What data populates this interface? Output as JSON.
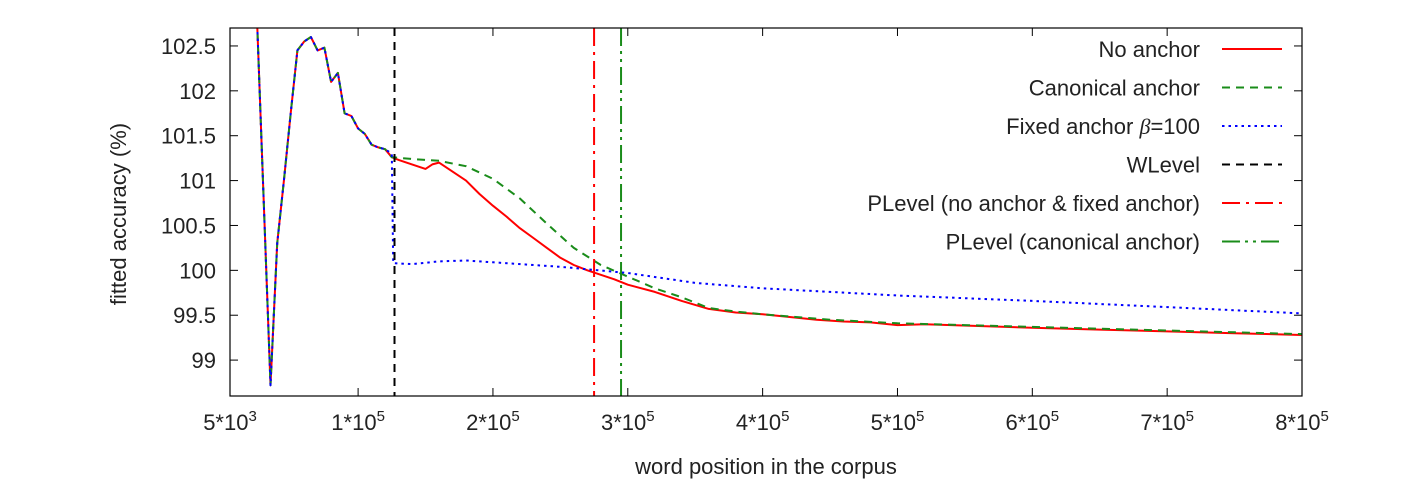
{
  "chart_data": {
    "type": "line",
    "title": "",
    "xlabel": "word position in the corpus",
    "ylabel": "fitted accuracy (%)",
    "xlim": [
      5000,
      800000
    ],
    "ylim": [
      98.6,
      102.7
    ],
    "grid": false,
    "legend_position": "top-right",
    "x_ticks": [
      {
        "value": 5000,
        "base": "5*10",
        "exp": "3"
      },
      {
        "value": 100000,
        "base": "1*10",
        "exp": "5"
      },
      {
        "value": 200000,
        "base": "2*10",
        "exp": "5"
      },
      {
        "value": 300000,
        "base": "3*10",
        "exp": "5"
      },
      {
        "value": 400000,
        "base": "4*10",
        "exp": "5"
      },
      {
        "value": 500000,
        "base": "5*10",
        "exp": "5"
      },
      {
        "value": 600000,
        "base": "6*10",
        "exp": "5"
      },
      {
        "value": 700000,
        "base": "7*10",
        "exp": "5"
      },
      {
        "value": 800000,
        "base": "8*10",
        "exp": "5"
      }
    ],
    "y_ticks": [
      {
        "value": 99,
        "label": "99"
      },
      {
        "value": 99.5,
        "label": "99.5"
      },
      {
        "value": 100,
        "label": "100"
      },
      {
        "value": 100.5,
        "label": "100.5"
      },
      {
        "value": 101,
        "label": "101"
      },
      {
        "value": 101.5,
        "label": "101.5"
      },
      {
        "value": 102,
        "label": "102"
      },
      {
        "value": 102.5,
        "label": "102.5"
      }
    ],
    "series": [
      {
        "name": "No anchor",
        "color": "#ff0000",
        "dash": "solid",
        "points": [
          [
            25000,
            102.8
          ],
          [
            35000,
            98.72
          ],
          [
            40000,
            100.3
          ],
          [
            45000,
            101.0
          ],
          [
            50000,
            101.75
          ],
          [
            55000,
            102.45
          ],
          [
            60000,
            102.55
          ],
          [
            65000,
            102.6
          ],
          [
            70000,
            102.45
          ],
          [
            75000,
            102.48
          ],
          [
            80000,
            102.1
          ],
          [
            85000,
            102.2
          ],
          [
            90000,
            101.75
          ],
          [
            95000,
            101.72
          ],
          [
            100000,
            101.58
          ],
          [
            105000,
            101.52
          ],
          [
            110000,
            101.4
          ],
          [
            115000,
            101.37
          ],
          [
            120000,
            101.35
          ],
          [
            125000,
            101.26
          ],
          [
            130000,
            101.23
          ],
          [
            140000,
            101.18
          ],
          [
            150000,
            101.13
          ],
          [
            155000,
            101.18
          ],
          [
            160000,
            101.2
          ],
          [
            170000,
            101.1
          ],
          [
            180000,
            101.0
          ],
          [
            190000,
            100.85
          ],
          [
            200000,
            100.72
          ],
          [
            210000,
            100.6
          ],
          [
            220000,
            100.47
          ],
          [
            230000,
            100.36
          ],
          [
            240000,
            100.25
          ],
          [
            250000,
            100.14
          ],
          [
            260000,
            100.06
          ],
          [
            270000,
            100.0
          ],
          [
            280000,
            99.95
          ],
          [
            290000,
            99.9
          ],
          [
            300000,
            99.84
          ],
          [
            320000,
            99.76
          ],
          [
            340000,
            99.66
          ],
          [
            360000,
            99.57
          ],
          [
            380000,
            99.53
          ],
          [
            400000,
            99.51
          ],
          [
            420000,
            99.48
          ],
          [
            440000,
            99.45
          ],
          [
            460000,
            99.43
          ],
          [
            480000,
            99.42
          ],
          [
            500000,
            99.39
          ],
          [
            520000,
            99.4
          ],
          [
            560000,
            99.38
          ],
          [
            600000,
            99.36
          ],
          [
            650000,
            99.34
          ],
          [
            700000,
            99.32
          ],
          [
            750000,
            99.3
          ],
          [
            800000,
            99.28
          ]
        ]
      },
      {
        "name": "Canonical anchor",
        "color": "#1a8c1a",
        "dash": "dashed",
        "points": [
          [
            25000,
            102.8
          ],
          [
            35000,
            98.72
          ],
          [
            40000,
            100.3
          ],
          [
            45000,
            101.0
          ],
          [
            50000,
            101.75
          ],
          [
            55000,
            102.45
          ],
          [
            60000,
            102.55
          ],
          [
            65000,
            102.6
          ],
          [
            70000,
            102.45
          ],
          [
            75000,
            102.48
          ],
          [
            80000,
            102.1
          ],
          [
            85000,
            102.2
          ],
          [
            90000,
            101.75
          ],
          [
            95000,
            101.72
          ],
          [
            100000,
            101.58
          ],
          [
            105000,
            101.52
          ],
          [
            110000,
            101.4
          ],
          [
            115000,
            101.37
          ],
          [
            120000,
            101.35
          ],
          [
            125000,
            101.26
          ],
          [
            140000,
            101.24
          ],
          [
            160000,
            101.22
          ],
          [
            180000,
            101.16
          ],
          [
            200000,
            101.02
          ],
          [
            220000,
            100.8
          ],
          [
            240000,
            100.52
          ],
          [
            260000,
            100.25
          ],
          [
            280000,
            100.06
          ],
          [
            300000,
            99.93
          ],
          [
            320000,
            99.8
          ],
          [
            340000,
            99.7
          ],
          [
            360000,
            99.58
          ],
          [
            380000,
            99.54
          ],
          [
            400000,
            99.51
          ],
          [
            450000,
            99.45
          ],
          [
            500000,
            99.41
          ],
          [
            550000,
            99.39
          ],
          [
            600000,
            99.37
          ],
          [
            650000,
            99.35
          ],
          [
            700000,
            99.33
          ],
          [
            750000,
            99.31
          ],
          [
            800000,
            99.29
          ]
        ]
      },
      {
        "name": "Fixed anchor β=100",
        "color": "#0000ff",
        "dash": "dotted",
        "points": [
          [
            25000,
            102.8
          ],
          [
            35000,
            98.72
          ],
          [
            40000,
            100.3
          ],
          [
            45000,
            101.0
          ],
          [
            50000,
            101.75
          ],
          [
            55000,
            102.45
          ],
          [
            60000,
            102.55
          ],
          [
            65000,
            102.6
          ],
          [
            70000,
            102.45
          ],
          [
            75000,
            102.48
          ],
          [
            80000,
            102.1
          ],
          [
            85000,
            102.2
          ],
          [
            90000,
            101.75
          ],
          [
            95000,
            101.72
          ],
          [
            100000,
            101.58
          ],
          [
            105000,
            101.52
          ],
          [
            110000,
            101.4
          ],
          [
            115000,
            101.37
          ],
          [
            120000,
            101.35
          ],
          [
            125000,
            101.3
          ],
          [
            126000,
            100.08
          ],
          [
            140000,
            100.07
          ],
          [
            160000,
            100.1
          ],
          [
            180000,
            100.11
          ],
          [
            200000,
            100.09
          ],
          [
            250000,
            100.04
          ],
          [
            300000,
            99.97
          ],
          [
            350000,
            99.86
          ],
          [
            400000,
            99.8
          ],
          [
            450000,
            99.76
          ],
          [
            500000,
            99.72
          ],
          [
            600000,
            99.66
          ],
          [
            700000,
            99.59
          ],
          [
            800000,
            99.52
          ]
        ]
      },
      {
        "name": "WLevel",
        "color": "#000000",
        "dash": "dashed",
        "vertical_at": 127000
      },
      {
        "name": "PLevel (no anchor & fixed anchor)",
        "color": "#ff0000",
        "dash": "dashdot",
        "vertical_at": 275000
      },
      {
        "name": "PLevel (canonical anchor)",
        "color": "#1a8c1a",
        "dash": "dashdotdot",
        "vertical_at": 295000
      }
    ]
  }
}
